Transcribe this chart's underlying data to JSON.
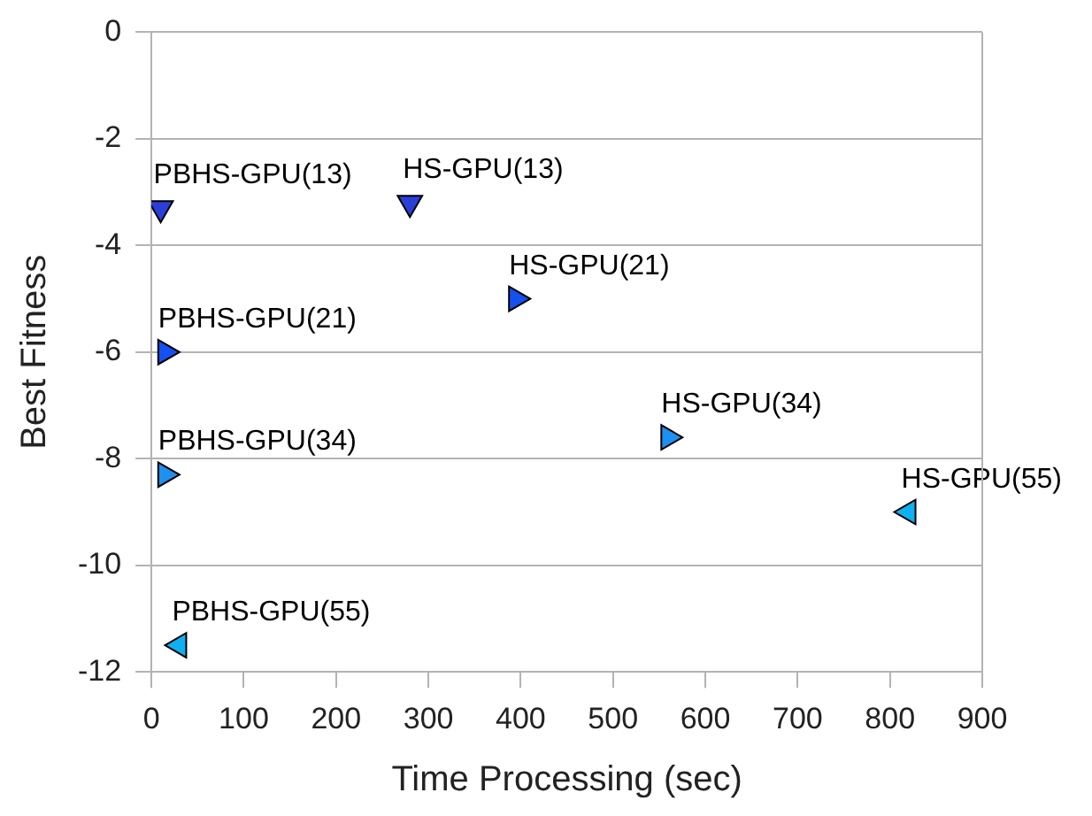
{
  "chart_data": {
    "type": "scatter",
    "xlabel": "Time Processing (sec)",
    "ylabel": "Best Fitness",
    "xlim": [
      0,
      900
    ],
    "xticks": [
      0,
      100,
      200,
      300,
      400,
      500,
      600,
      700,
      800,
      900
    ],
    "ylim": [
      -12,
      0
    ],
    "yticks": [
      -12,
      -10,
      -8,
      -6,
      -4,
      -2,
      0
    ],
    "grid": "y",
    "legend": false,
    "marker": "triangle",
    "series": [
      {
        "color": "#2b3fd8",
        "x": [
          10,
          280
        ],
        "values": [
          -3.3,
          -3.2
        ]
      },
      {
        "color": "#1550f0",
        "x": [
          15,
          395
        ],
        "values": [
          -6.0,
          -5.0
        ]
      },
      {
        "color": "#1e90f0",
        "x": [
          15,
          560
        ],
        "values": [
          -8.3,
          -7.6
        ]
      },
      {
        "color": "#10b0f0",
        "x": [
          30,
          820
        ],
        "values": [
          -11.5,
          -9.0
        ]
      }
    ],
    "annotations": [
      {
        "text": "PBHS-GPU(13)",
        "x": 10,
        "y": -3.3
      },
      {
        "text": "HS-GPU(13)",
        "x": 280,
        "y": -3.2
      },
      {
        "text": "PBHS-GPU(21)",
        "x": 15,
        "y": -6.0
      },
      {
        "text": "HS-GPU(21)",
        "x": 395,
        "y": -5.0
      },
      {
        "text": "PBHS-GPU(34)",
        "x": 15,
        "y": -8.3
      },
      {
        "text": "HS-GPU(34)",
        "x": 560,
        "y": -7.6
      },
      {
        "text": "PBHS-GPU(55)",
        "x": 30,
        "y": -11.5
      },
      {
        "text": "HS-GPU(55)",
        "x": 820,
        "y": -9.0
      }
    ]
  }
}
